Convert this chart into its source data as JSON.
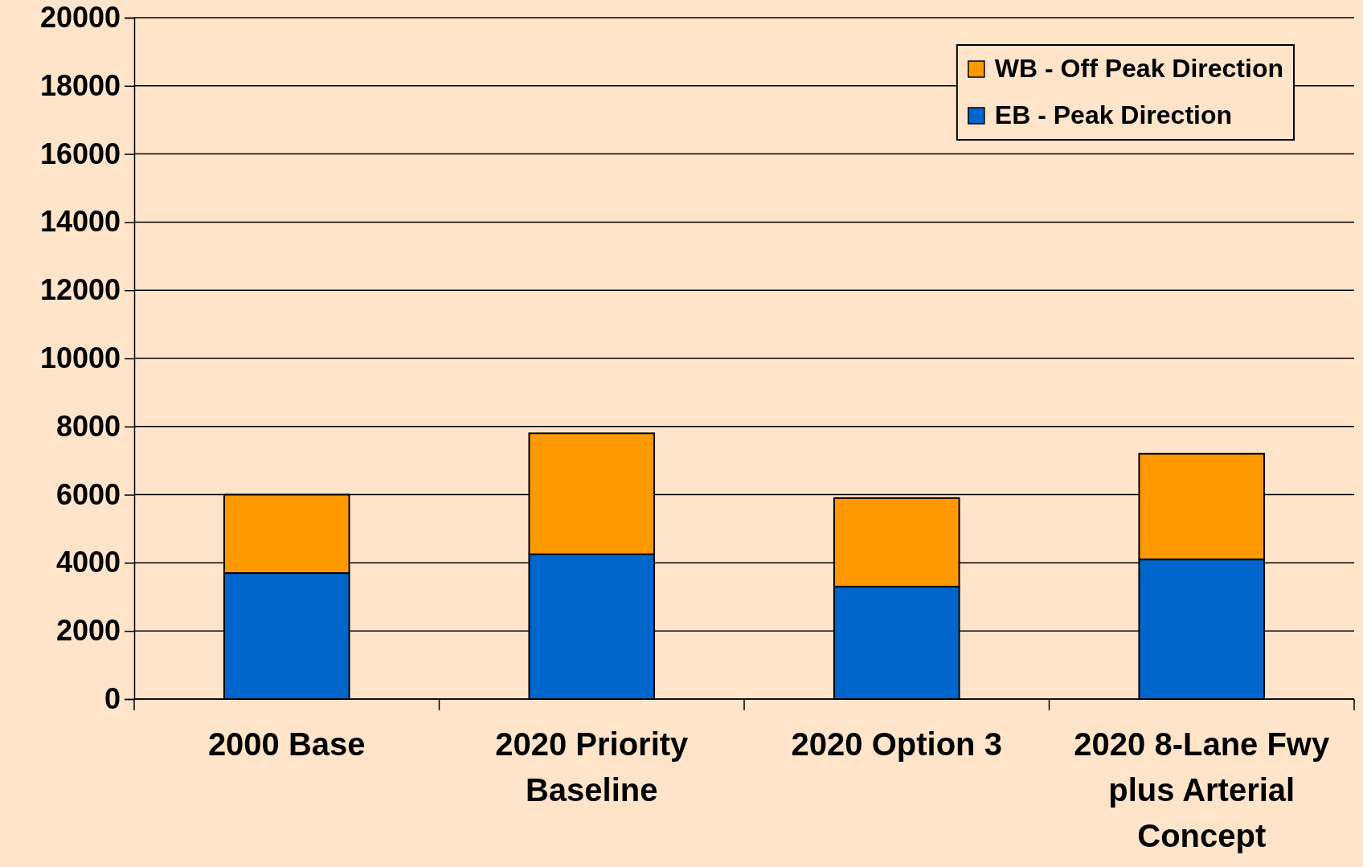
{
  "chart_data": {
    "type": "bar",
    "stacked": true,
    "categories": [
      "2000 Base",
      "2020 Priority Baseline",
      "2020 Option 3",
      "2020 8-Lane Fwy plus Arterial Concept"
    ],
    "series": [
      {
        "name": "EB - Peak Direction",
        "color": "#0066cc",
        "values": [
          3700,
          4250,
          3300,
          4100
        ]
      },
      {
        "name": "WB - Off Peak Direction",
        "color": "#ff9900",
        "values": [
          2300,
          3550,
          2600,
          3100
        ]
      }
    ],
    "ylim": [
      0,
      20000
    ],
    "yticks": [
      0,
      2000,
      4000,
      6000,
      8000,
      10000,
      12000,
      14000,
      16000,
      18000,
      20000
    ],
    "grid": "y",
    "legend": "top right"
  }
}
